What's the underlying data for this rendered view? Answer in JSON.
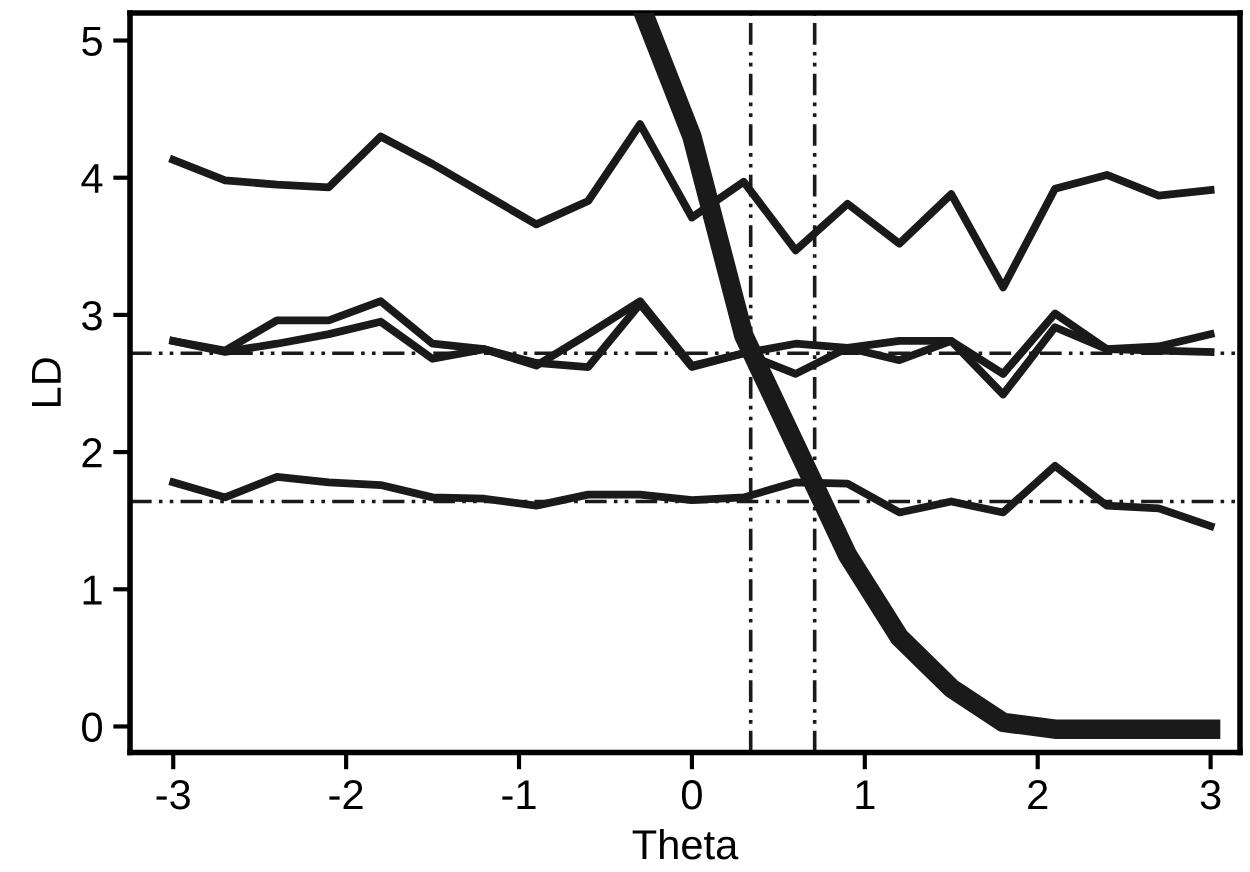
{
  "chart_data": {
    "type": "line",
    "xlabel": "Theta",
    "ylabel": "LD",
    "x": [
      -3,
      -2.7,
      -2.4,
      -2.1,
      -1.8,
      -1.5,
      -1.2,
      -0.9,
      -0.6,
      -0.3,
      0,
      0.3,
      0.6,
      0.9,
      1.2,
      1.5,
      1.8,
      2.1,
      2.4,
      2.7,
      3
    ],
    "series": [
      {
        "color": "#1a1a1a",
        "values": [
          4.13,
          3.98,
          3.95,
          3.93,
          4.3,
          4.1,
          3.88,
          3.66,
          3.83,
          4.39,
          3.71,
          3.97,
          3.47,
          3.81,
          3.52,
          3.88,
          3.2,
          3.92,
          4.02,
          3.87,
          3.91
        ]
      },
      {
        "color": "#1a1a1a",
        "values": [
          2.81,
          2.74,
          2.96,
          2.96,
          3.1,
          2.79,
          2.75,
          2.63,
          2.86,
          3.1,
          2.63,
          2.72,
          2.79,
          2.76,
          2.81,
          2.81,
          2.57,
          3.01,
          2.75,
          2.77,
          2.86
        ]
      },
      {
        "color": "#1a1a1a",
        "values": [
          2.81,
          2.73,
          2.79,
          2.86,
          2.95,
          2.68,
          2.75,
          2.65,
          2.62,
          3.08,
          2.62,
          2.72,
          2.57,
          2.76,
          2.67,
          2.81,
          2.42,
          2.91,
          2.75,
          2.74,
          2.73
        ]
      },
      {
        "color": "#1a1a1a",
        "values": [
          1.78,
          1.67,
          1.82,
          1.78,
          1.76,
          1.67,
          1.66,
          1.61,
          1.69,
          1.69,
          1.65,
          1.67,
          1.78,
          1.77,
          1.56,
          1.64,
          1.56,
          1.9,
          1.61,
          1.59,
          1.46
        ]
      },
      {
        "color": "#1a1a1a",
        "x": [
          -0.28,
          0,
          0.3,
          0.6,
          0.9,
          1.2,
          1.5,
          1.8,
          2.1,
          2.4,
          2.7,
          3
        ],
        "values": [
          5.2,
          4.3,
          2.85,
          2.05,
          1.25,
          0.65,
          0.28,
          0.03,
          -0.02,
          -0.02,
          -0.02,
          -0.02
        ]
      }
    ],
    "ref_lines": [
      {
        "axis": "y",
        "value": 2.72,
        "line_style": "dashed",
        "color": "#1a1a1a"
      },
      {
        "axis": "y",
        "value": 1.64,
        "line_style": "dashed",
        "color": "#1a1a1a"
      },
      {
        "axis": "x",
        "value": 0.34,
        "line_style": "dashed",
        "color": "#1a1a1a"
      },
      {
        "axis": "x",
        "value": 0.71,
        "line_style": "dashed",
        "color": "#1a1a1a"
      }
    ],
    "xlim": [
      -3.25,
      3.17
    ],
    "ylim": [
      -0.19,
      5.2
    ],
    "xticks": [
      -3,
      -2,
      -1,
      0,
      1,
      2,
      3
    ],
    "yticks": [
      0,
      1,
      2,
      3,
      4,
      5
    ],
    "grid": false,
    "legend": false,
    "marker": "none",
    "line_style": "solid"
  }
}
